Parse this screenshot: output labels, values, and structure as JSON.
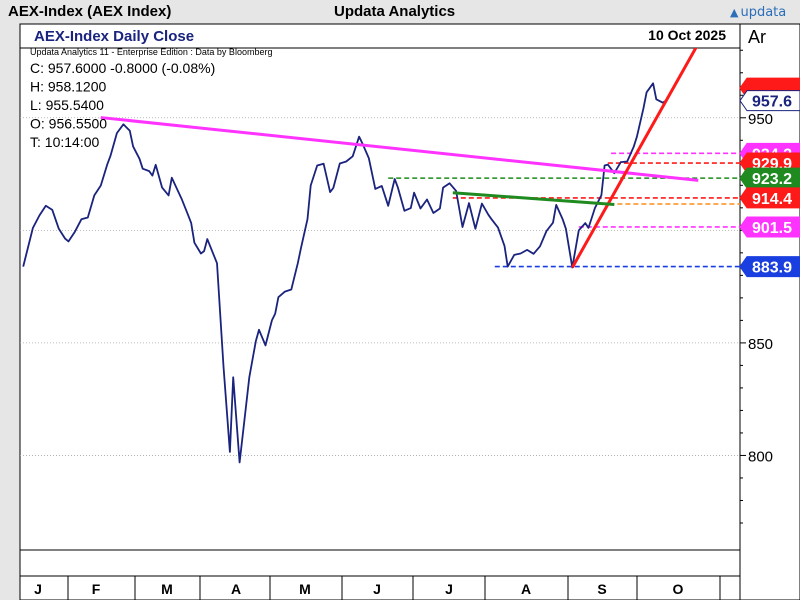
{
  "header": {
    "instrument": "AEX-Index (AEX Index)",
    "app_name": "Updata Analytics",
    "logo_text": "updata"
  },
  "chart_data": {
    "type": "line",
    "title": "AEX-Index Daily Close",
    "date": "10 Oct 2025",
    "source_note": "Updata Analytics 11 - Enterprise Edition : Data by Bloomberg",
    "axis_tag": "Ar",
    "ohlc": {
      "close": "C: 957.6000  -0.8000 (-0.08%)",
      "high": "H: 958.1200",
      "low": "L: 955.5400",
      "open": "O: 956.5500",
      "time": "T: 10:14:00"
    },
    "ylim": [
      758,
      981
    ],
    "y_ticks": [
      800,
      850,
      900,
      950
    ],
    "x_tick_labels": [
      "J",
      "F",
      "M",
      "A",
      "M",
      "J",
      "J",
      "A",
      "S",
      "O"
    ],
    "grid": true,
    "series": [
      {
        "values": [
          [
            1,
            883.9
          ],
          [
            4,
            901.1
          ],
          [
            6,
            906.6
          ],
          [
            8,
            910.9
          ],
          [
            10,
            909.1
          ],
          [
            12,
            900.7
          ],
          [
            14,
            896.3
          ],
          [
            15,
            895.1
          ],
          [
            17,
            899.4
          ],
          [
            19,
            904.9
          ],
          [
            21,
            905.7
          ],
          [
            23,
            915.5
          ],
          [
            25,
            919.9
          ],
          [
            27,
            929.2
          ],
          [
            28,
            933.0
          ],
          [
            30,
            943.2
          ],
          [
            32,
            947.1
          ],
          [
            34,
            944.2
          ],
          [
            35,
            937.3
          ],
          [
            37,
            931.8
          ],
          [
            38,
            927.4
          ],
          [
            40,
            926.3
          ],
          [
            41,
            924.3
          ],
          [
            42,
            929.1
          ],
          [
            44,
            919.0
          ],
          [
            46,
            915.5
          ],
          [
            47,
            923.4
          ],
          [
            50,
            914.1
          ],
          [
            52,
            906.9
          ],
          [
            53,
            903.2
          ],
          [
            54,
            894.5
          ],
          [
            56,
            889.7
          ],
          [
            57,
            890.8
          ],
          [
            58,
            896.1
          ],
          [
            61,
            885.4
          ],
          [
            63,
            839.5
          ],
          [
            65,
            801.6
          ],
          [
            66,
            834.7
          ],
          [
            68,
            796.9
          ],
          [
            70,
            822.2
          ],
          [
            71,
            834.7
          ],
          [
            73,
            850.7
          ],
          [
            74,
            855.8
          ],
          [
            76,
            848.9
          ],
          [
            78,
            860.0
          ],
          [
            79,
            863.0
          ],
          [
            80,
            870.3
          ],
          [
            82,
            872.8
          ],
          [
            84,
            873.7
          ],
          [
            86,
            885.4
          ],
          [
            87,
            892.2
          ],
          [
            89,
            905.0
          ],
          [
            90,
            919.9
          ],
          [
            92,
            928.8
          ],
          [
            94,
            929.6
          ],
          [
            96,
            917.0
          ],
          [
            97,
            918.8
          ],
          [
            99,
            929.7
          ],
          [
            101,
            930.6
          ],
          [
            103,
            932.9
          ],
          [
            105,
            941.6
          ],
          [
            106,
            938.6
          ],
          [
            108,
            932.1
          ],
          [
            110,
            918.4
          ],
          [
            112,
            919.7
          ],
          [
            114,
            910.9
          ],
          [
            116,
            922.8
          ],
          [
            117,
            919.0
          ],
          [
            119,
            908.7
          ],
          [
            121,
            909.9
          ],
          [
            122,
            916.7
          ],
          [
            124,
            909.7
          ],
          [
            126,
            913.7
          ],
          [
            128,
            907.7
          ],
          [
            130,
            909.7
          ],
          [
            131,
            919.0
          ],
          [
            133,
            920.9
          ],
          [
            135,
            917.5
          ],
          [
            137,
            901.5
          ],
          [
            139,
            912.1
          ],
          [
            141,
            900.7
          ],
          [
            143,
            911.9
          ],
          [
            145,
            906.9
          ],
          [
            146,
            904.9
          ],
          [
            148,
            901.2
          ],
          [
            150,
            893.1
          ],
          [
            151,
            883.9
          ],
          [
            153,
            889.1
          ],
          [
            155,
            889.7
          ],
          [
            157,
            891.3
          ],
          [
            159,
            889.6
          ],
          [
            161,
            892.9
          ],
          [
            163,
            899.7
          ],
          [
            165,
            903.4
          ],
          [
            166,
            911.3
          ],
          [
            168,
            905.0
          ],
          [
            169,
            900.7
          ],
          [
            171,
            883.5
          ],
          [
            173,
            900.0
          ],
          [
            175,
            903.2
          ],
          [
            176,
            901.1
          ],
          [
            178,
            909.9
          ],
          [
            180,
            915.6
          ],
          [
            181,
            928.8
          ],
          [
            182,
            929.2
          ],
          [
            184,
            925.4
          ],
          [
            186,
            930.3
          ],
          [
            188,
            930.6
          ],
          [
            190,
            937.1
          ],
          [
            191,
            941.6
          ],
          [
            193,
            954.1
          ],
          [
            194,
            961.3
          ],
          [
            196,
            965.3
          ],
          [
            197,
            958.2
          ],
          [
            199,
            956.7
          ],
          [
            200,
            957.6
          ]
        ]
      }
    ],
    "trendlines": [
      {
        "color": "#ff33ff",
        "points": [
          [
            25,
            950.1
          ],
          [
            210,
            922.2
          ]
        ]
      },
      {
        "color": "#ff1a1a",
        "points": [
          [
            171,
            883.5
          ],
          [
            210,
            983.0
          ]
        ]
      },
      {
        "color": "#1f8a1f",
        "points": [
          [
            134,
            916.7
          ],
          [
            184,
            911.5
          ]
        ]
      }
    ],
    "price_tags": [
      {
        "value": "963.2",
        "line": 963.2,
        "color": "#ff1a1a",
        "text": "#ff1a1a",
        "show_line": false,
        "from": 0
      },
      {
        "value": "957.6",
        "line": 957.6,
        "color": "#ffffff",
        "text": "#1a237e",
        "border": "#1a237e",
        "show_line": false,
        "from": 0
      },
      {
        "value": "934.2",
        "line": 934.2,
        "color": "#ff33ff",
        "text": "#ffffff",
        "show_line": true,
        "from": 183
      },
      {
        "value": "929.9",
        "line": 929.9,
        "color": "#ff1a1a",
        "text": "#ffffff",
        "show_line": true,
        "from": 182
      },
      {
        "value": "923.2",
        "line": 923.2,
        "color": "#1f8a1f",
        "text": "#ffffff",
        "show_line": true,
        "from": 114
      },
      {
        "value": "914.4",
        "line": 914.4,
        "color": "#ff1a1a",
        "text": "#ffffff",
        "show_line": true,
        "from": 134
      },
      {
        "value": "901.5",
        "line": 901.5,
        "color": "#ff33ff",
        "text": "#ffffff",
        "show_line": true,
        "from": 173
      },
      {
        "value": "883.9",
        "line": 883.9,
        "color": "#1a3fe0",
        "text": "#ffffff",
        "show_line": true,
        "from": 147
      }
    ],
    "extra_hlines": [
      {
        "value": 911.7,
        "color": "#ff8c1a",
        "from": 180
      }
    ],
    "colors": {
      "line": "#1a237e",
      "title": "#1a237e"
    }
  }
}
